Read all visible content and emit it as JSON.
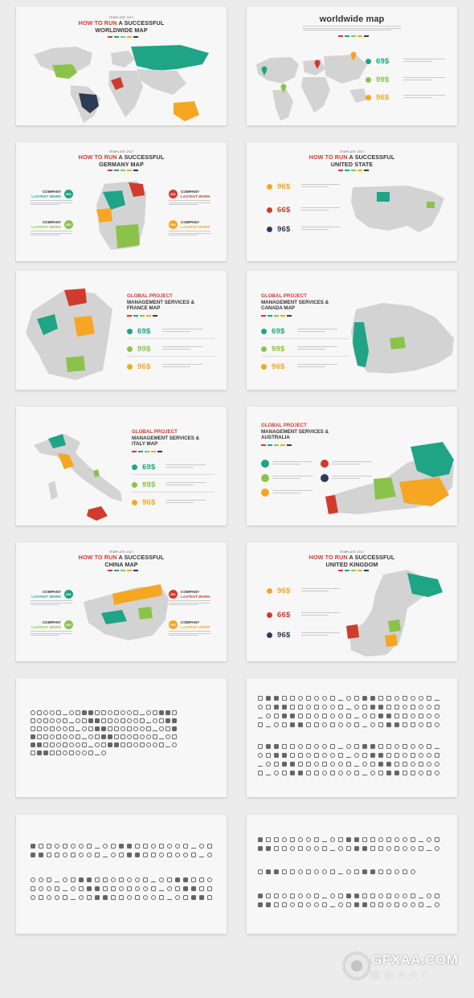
{
  "slides": {
    "s1": {
      "template": "TEMPLATE 2017",
      "title_red": "HOW TO RUN",
      "title_rest": " A SUCCESSFUL",
      "title_line2": "WORLDWIDE MAP"
    },
    "s2": {
      "title": "worldwide map",
      "values": [
        "69$",
        "99$",
        "96$"
      ]
    },
    "s3": {
      "template": "TEMPLATE 2017",
      "title_red": "HOW TO RUN",
      "title_rest": " A SUCCESSFUL",
      "title_line2": "GERMANY MAP",
      "badges": [
        "69%",
        "69%",
        "69%",
        "69%"
      ],
      "company": "COMPANY",
      "lastest": "LASTEST WORK"
    },
    "s4": {
      "template": "TEMPLATE 2017",
      "title_red": "HOW TO RUN",
      "title_rest": " A SUCCESSFUL",
      "title_line2": "UNITED STATE",
      "values": [
        "96$",
        "66$",
        "96$"
      ]
    },
    "s5": {
      "title_red": "GLOBAL PROJECT",
      "title_l2": "MANAGEMENT SERVICES &",
      "title_l3": "FRANCE MAP",
      "values": [
        "69$",
        "99$",
        "96$"
      ]
    },
    "s6": {
      "title_red": "GLOBAL PROJECT",
      "title_l2": "MANAGEMENT SERVICES &",
      "title_l3": "CANADA MAP",
      "values": [
        "69$",
        "99$",
        "96$"
      ]
    },
    "s7": {
      "title_red": "GLOBAL PROJECT",
      "title_l2": "MANAGEMENT SERVICES &",
      "title_l3": "ITALY MAP",
      "values": [
        "69$",
        "99$",
        "96$"
      ]
    },
    "s8": {
      "title_red": "GLOBAL PROJECT",
      "title_l2": "MANAGEMENT SERVICES &",
      "title_l3": "AUSTRALIA"
    },
    "s9": {
      "template": "TEMPLATE 2017",
      "title_red": "HOW TO RUN",
      "title_rest": " A SUCCESSFUL",
      "title_line2": "CHINA MAP",
      "badges": [
        "69%",
        "69%",
        "69%",
        "69%"
      ],
      "company": "COMPANY",
      "lastest": "LASTEST WORK"
    },
    "s10": {
      "template": "TEMPLATE 2017",
      "title_red": "HOW TO RUN",
      "title_rest": " A SUCCESSFUL",
      "title_line2": "UNITED KINGDOM",
      "values": [
        "96$",
        "66$",
        "96$"
      ]
    }
  },
  "watermark": {
    "brand": "GFXAA.COM",
    "sub": "图 鱼 P P T"
  },
  "colors": {
    "teal": "#1fa486",
    "green": "#8bc34a",
    "orange": "#f5a623",
    "red": "#d03b2e",
    "navy": "#2e3b55",
    "map_gray": "#d3d3d3"
  }
}
